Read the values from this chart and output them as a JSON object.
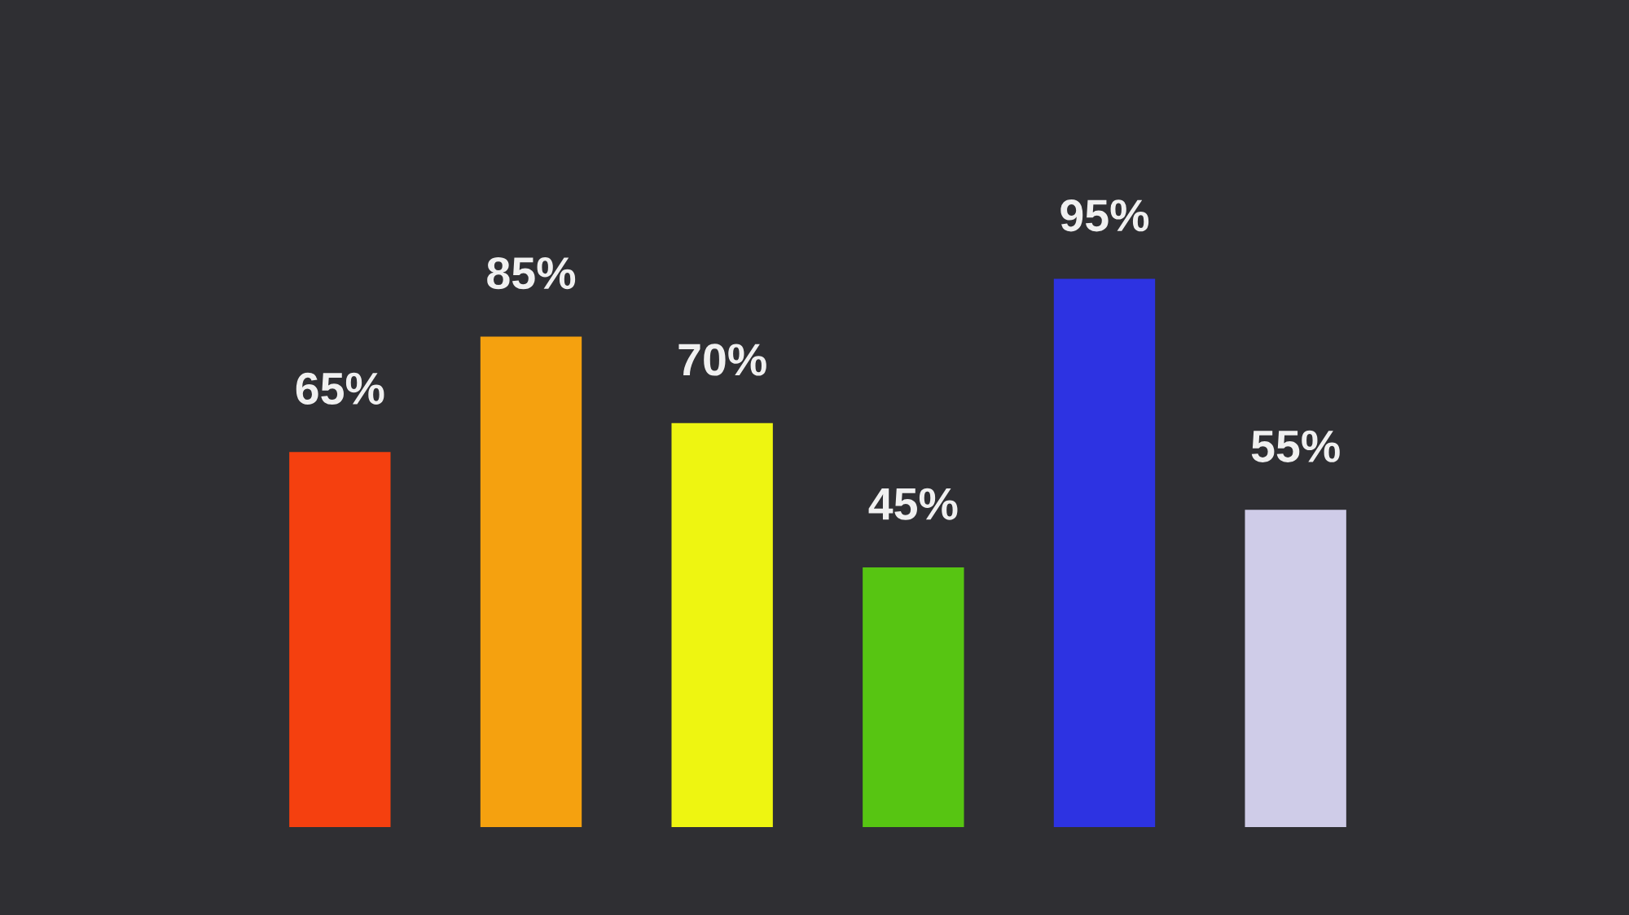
{
  "chart_data": {
    "type": "bar",
    "categories": [
      null,
      null,
      null,
      null,
      null,
      null
    ],
    "values": [
      65,
      85,
      70,
      45,
      95,
      55
    ],
    "colors": [
      "#f5400f",
      "#f5a10f",
      "#eef511",
      "#57c512",
      "#2d33e2",
      "#cfcce8"
    ],
    "value_labels": [
      "65%",
      "85%",
      "70%",
      "45%",
      "95%",
      "55%"
    ]
  }
}
